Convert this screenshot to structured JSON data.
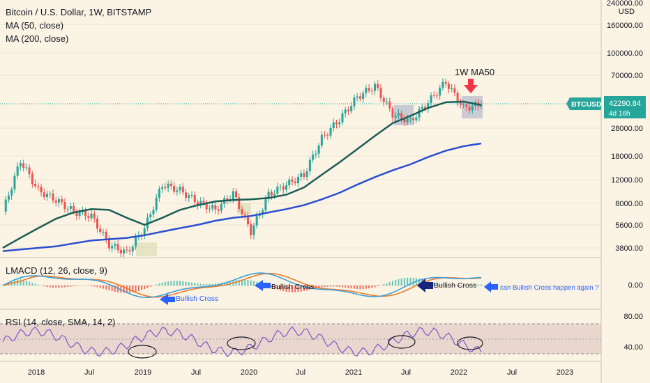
{
  "main_legend": {
    "title": "Bitcoin / U.S. Dollar, 1W, BITSTAMP",
    "ma50": "MA (50, close)",
    "ma200": "MA (200, close)"
  },
  "price_axis": {
    "currency": "USD",
    "ticks": [
      "240000.00",
      "160000.00",
      "100000.00",
      "70000.00",
      "42290.84",
      "28000.00",
      "18000.00",
      "12000.00",
      "8000.00",
      "5600.00",
      "3800.00"
    ]
  },
  "badge": {
    "symbol": "BTCUSD",
    "price": "42290.84",
    "countdown": "4d 16h"
  },
  "macd": {
    "legend": "LMACD (12, 26, close, 9)",
    "zero_label": "0.00"
  },
  "rsi": {
    "legend": "RSI (14, close, SMA, 14, 2)",
    "upper_label": "80.00",
    "lower_label": "40.00"
  },
  "time_axis": [
    "2018",
    "Jul",
    "2019",
    "Jul",
    "2020",
    "Jul",
    "2021",
    "Jul",
    "2022",
    "Jul",
    "2023"
  ],
  "annotations": {
    "ma50_label": "1W MA50",
    "bullish1": "Bullish Cross",
    "bullish2": "Bullish Cross",
    "bullish3": "Bullish Cross",
    "question": "can Bullish Cross happen again ?"
  },
  "colors": {
    "background": "#fbf3e4",
    "up": "#26a69a",
    "down": "#ef5350",
    "ma50": "#1b5e57",
    "ma200": "#2a4fcf",
    "macd_line": "#3aa0d6",
    "signal_line": "#f4792b",
    "rsi_line": "#7e57c2",
    "arrow_red": "#f23645",
    "arrow_blue": "#2962ff",
    "arrow_navy": "#1a237e"
  },
  "chart_data": {
    "type": "candlestick",
    "symbol": "BTCUSD",
    "interval": "1W",
    "price_scale": "log",
    "x": [
      "2017-11",
      "2017-12",
      "2018-01",
      "2018-04",
      "2018-07",
      "2018-09",
      "2018-11",
      "2018-12",
      "2019-04",
      "2019-06",
      "2019-08",
      "2019-10",
      "2019-12",
      "2020-02",
      "2020-03",
      "2020-05",
      "2020-07",
      "2020-10",
      "2020-12",
      "2021-01",
      "2021-02",
      "2021-04",
      "2021-05",
      "2021-07",
      "2021-09",
      "2021-11",
      "2022-01",
      "2022-03"
    ],
    "close": [
      7000,
      16500,
      10000,
      8500,
      7000,
      6500,
      4000,
      3500,
      5300,
      11000,
      10000,
      8200,
      7200,
      9500,
      5000,
      9300,
      11000,
      13000,
      24000,
      33000,
      48000,
      58000,
      36000,
      32000,
      44000,
      62000,
      40000,
      42290.84
    ],
    "ma50": [
      3800,
      4500,
      5300,
      6200,
      6900,
      7300,
      7200,
      6300,
      5600,
      6300,
      7200,
      7800,
      8300,
      8500,
      8600,
      8800,
      9300,
      10500,
      13000,
      16000,
      20000,
      25000,
      31000,
      35000,
      40000,
      44000,
      44500,
      42000
    ],
    "ma200": [
      3600,
      3700,
      3800,
      3900,
      4100,
      4300,
      4400,
      4500,
      4700,
      5000,
      5300,
      5600,
      6000,
      6300,
      6500,
      6900,
      7300,
      7800,
      8600,
      9600,
      11000,
      12500,
      14000,
      15500,
      17500,
      19500,
      21000,
      22000
    ],
    "macd": {
      "zero_label": 0,
      "series": [
        "MACD",
        "Signal",
        "Histogram"
      ]
    },
    "rsi": {
      "upper": 80,
      "lower": 40,
      "period": 14
    }
  }
}
